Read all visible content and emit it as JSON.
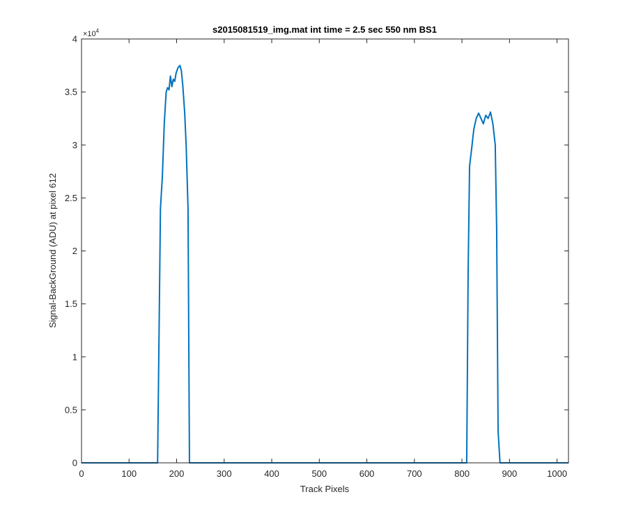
{
  "chart_data": {
    "type": "line",
    "title": "s2015081519_img.mat int time = 2.5 sec  550 nm BS1",
    "xlabel": "Track Pixels",
    "ylabel": "Signal-BackGround (ADU) at pixel 612",
    "y_exponent_label": "×10",
    "y_exponent_power": "4",
    "xlim": [
      0,
      1024
    ],
    "ylim": [
      0,
      40000
    ],
    "xticks": [
      0,
      100,
      200,
      300,
      400,
      500,
      600,
      700,
      800,
      900,
      1000
    ],
    "xtick_labels": [
      "0",
      "100",
      "200",
      "300",
      "400",
      "500",
      "600",
      "700",
      "800",
      "900",
      "1000"
    ],
    "yticks": [
      0,
      5000,
      10000,
      15000,
      20000,
      25000,
      30000,
      35000,
      40000
    ],
    "ytick_labels": [
      "0",
      "0.5",
      "1",
      "1.5",
      "2",
      "2.5",
      "3",
      "3.5",
      "4"
    ],
    "grid": false,
    "line_color": "#0072bd",
    "series": [
      {
        "x": [
          0,
          100,
          160,
          163,
          166,
          170,
          174,
          178,
          181,
          184,
          187,
          190,
          193,
          196,
          199,
          203,
          207,
          210,
          213,
          217,
          220,
          224,
          227,
          230,
          300,
          500,
          700,
          810,
          813,
          816,
          820,
          825,
          830,
          835,
          840,
          845,
          850,
          855,
          860,
          865,
          870,
          873,
          876,
          880,
          900,
          1024
        ],
        "y": [
          0,
          0,
          0,
          12000,
          24000,
          27000,
          32000,
          35000,
          35400,
          35200,
          36500,
          35500,
          36200,
          36000,
          36800,
          37300,
          37500,
          37000,
          35600,
          33000,
          30000,
          24000,
          0,
          0,
          0,
          0,
          0,
          0,
          18000,
          28000,
          29500,
          31500,
          32500,
          33000,
          32500,
          32000,
          32800,
          32500,
          33100,
          32000,
          30000,
          22000,
          3000,
          0,
          0,
          0
        ]
      }
    ]
  }
}
